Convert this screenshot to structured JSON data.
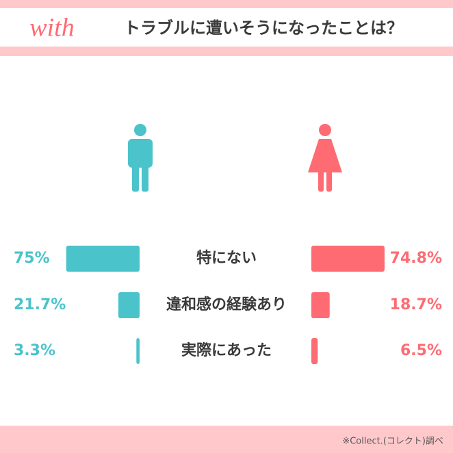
{
  "logo": "with",
  "chart_data": {
    "type": "bar",
    "title": "トラブルに遭いそうになったことは？",
    "categories": [
      "特にない",
      "違和感の経験あり",
      "実際にあった"
    ],
    "series": [
      {
        "color": "#4bc3cb",
        "values": [
          75,
          21.7,
          3.3
        ],
        "value_labels": [
          "75%",
          "21.7%",
          "3.3%"
        ]
      },
      {
        "color": "#ff6b73",
        "values": [
          74.8,
          18.7,
          6.5
        ],
        "value_labels": [
          "74.8%",
          "18.7%",
          "6.5%"
        ]
      }
    ],
    "source": "※Collect.(コレクト)調べ"
  }
}
